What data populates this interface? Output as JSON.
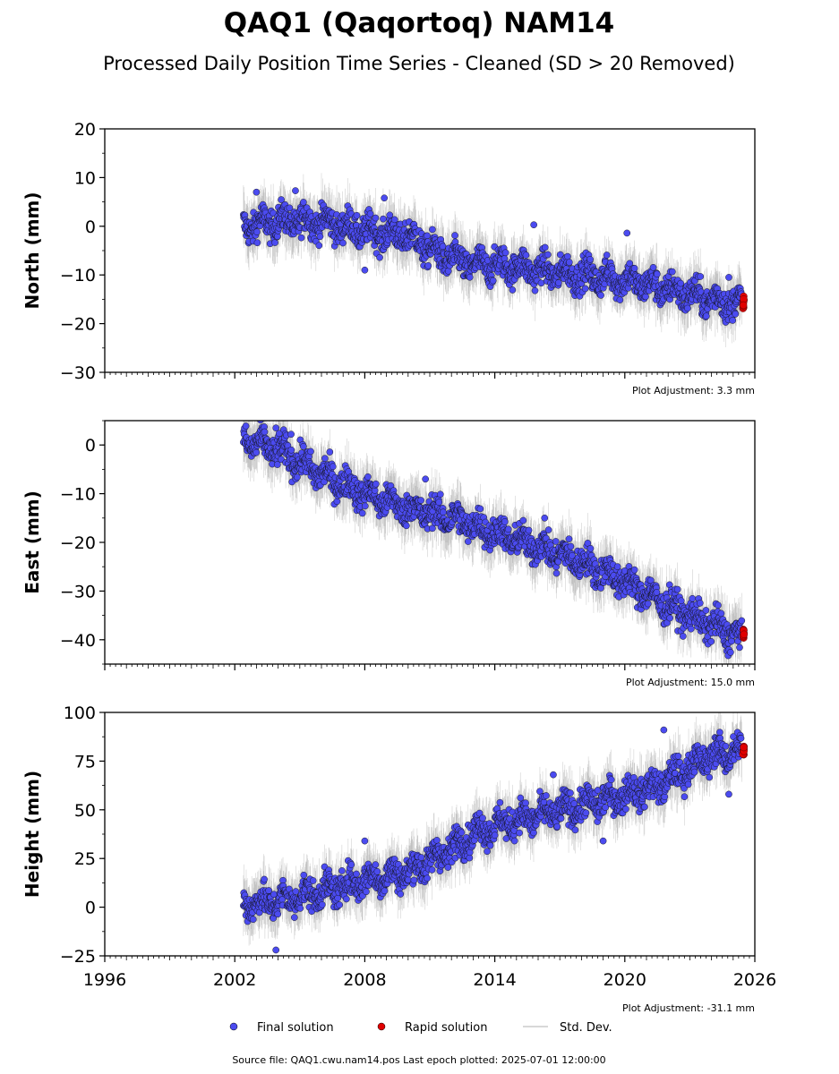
{
  "title": "QAQ1 (Qaqortoq) NAM14",
  "subtitle": "Processed Daily Position Time Series - Cleaned (SD > 20 Removed)",
  "source_note": "Source file: QAQ1.cwu.nam14.pos  Last epoch plotted: 2025-07-01 12:00:00",
  "legend": {
    "final_label": "Final solution",
    "rapid_label": "Rapid solution",
    "std_label": "Std. Dev."
  },
  "colors": {
    "final": "#4B4BF0",
    "rapid": "#E00000",
    "std": "#9a9a9a"
  },
  "x_ticks": [
    "1996",
    "2002",
    "2008",
    "2014",
    "2020",
    "2026"
  ],
  "chart_data": [
    {
      "type": "scatter",
      "ylabel": "North (mm)",
      "xlim": [
        1996,
        2026
      ],
      "ylim": [
        -30,
        20
      ],
      "yticks": [
        20,
        10,
        0,
        -10,
        -20,
        -30
      ],
      "ytick_labels": [
        "20",
        "10",
        "0",
        "−10",
        "−20",
        "−30"
      ],
      "adjustment": "Plot Adjustment: 3.3 mm",
      "span": [
        2002.4,
        2025.4
      ],
      "series": [
        {
          "values_x": [
            2002.4,
            2004.0,
            2006.0,
            2008.0,
            2010.0,
            2011.5,
            2013.0,
            2014.5,
            2016.0,
            2018.0,
            2020.0,
            2022.0,
            2024.0,
            2025.4
          ],
          "values_y": [
            0,
            1,
            1,
            -1,
            -2,
            -6,
            -8,
            -8,
            -9,
            -10,
            -11,
            -13,
            -15,
            -16
          ]
        }
      ],
      "rapid": {
        "x": [
          2025.45,
          2025.5
        ],
        "y": [
          -16,
          -15.5
        ]
      },
      "outliers": [
        [
          2003.0,
          7
        ],
        [
          2004.8,
          7.3
        ],
        [
          2008.9,
          5.8
        ],
        [
          2008.0,
          -9
        ],
        [
          2015.8,
          0.3
        ],
        [
          2020.1,
          -1.4
        ],
        [
          2024.8,
          -10.5
        ]
      ]
    },
    {
      "type": "scatter",
      "ylabel": "East (mm)",
      "xlim": [
        1996,
        2026
      ],
      "ylim": [
        -45,
        5
      ],
      "yticks": [
        0,
        -10,
        -20,
        -30,
        -40
      ],
      "ytick_labels": [
        "0",
        "−10",
        "−20",
        "−30",
        "−40"
      ],
      "adjustment": "Plot Adjustment: 15.0 mm",
      "span": [
        2002.4,
        2025.4
      ],
      "series": [
        {
          "values_x": [
            2002.4,
            2004.0,
            2006.0,
            2008.0,
            2010.0,
            2012.0,
            2014.0,
            2016.0,
            2018.0,
            2020.0,
            2022.0,
            2024.0,
            2025.4
          ],
          "values_y": [
            1,
            -1,
            -6,
            -10,
            -13,
            -15,
            -18,
            -21,
            -24,
            -28,
            -33,
            -37,
            -39.5
          ]
        }
      ],
      "rapid": {
        "x": [
          2025.45,
          2025.5
        ],
        "y": [
          -39,
          -38.5
        ]
      },
      "outliers": [
        [
          2003.9,
          3.5
        ],
        [
          2004.6,
          2.2
        ],
        [
          2010.8,
          -7
        ],
        [
          2016.3,
          -15
        ],
        [
          2022.6,
          -32
        ]
      ]
    },
    {
      "type": "scatter",
      "ylabel": "Height (mm)",
      "xlim": [
        1996,
        2026
      ],
      "ylim": [
        -25,
        100
      ],
      "yticks": [
        100,
        75,
        50,
        25,
        0,
        -25
      ],
      "ytick_labels": [
        "100",
        "75",
        "50",
        "25",
        "0",
        "−25"
      ],
      "adjustment": "Plot Adjustment: -31.1 mm",
      "span": [
        2002.4,
        2025.4
      ],
      "series": [
        {
          "values_x": [
            2002.4,
            2004.0,
            2006.0,
            2008.0,
            2010.0,
            2012.0,
            2013.0,
            2014.0,
            2016.0,
            2018.0,
            2020.0,
            2021.5,
            2023.0,
            2024.0,
            2025.4
          ],
          "values_y": [
            2,
            3,
            8,
            14,
            18,
            30,
            38,
            42,
            47,
            52,
            58,
            62,
            72,
            78,
            80
          ]
        }
      ],
      "rapid": {
        "x": [
          2025.45,
          2025.5
        ],
        "y": [
          78,
          82
        ]
      },
      "outliers": [
        [
          2003.9,
          -22
        ],
        [
          2008.0,
          34
        ],
        [
          2016.7,
          68
        ],
        [
          2019.0,
          34
        ],
        [
          2021.8,
          91
        ],
        [
          2024.8,
          58
        ]
      ]
    }
  ]
}
